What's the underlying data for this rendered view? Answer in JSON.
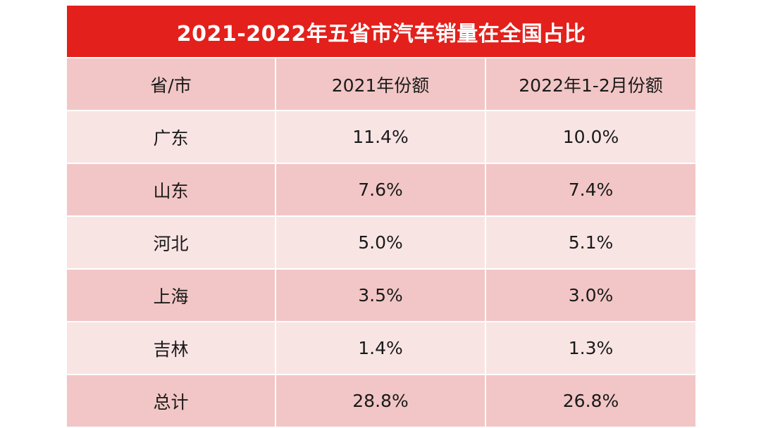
{
  "chart_data": {
    "type": "table",
    "title": "2021-2022年五省市汽车销量在全国占比",
    "columns": [
      "省/市",
      "2021年份额",
      "2022年1-2月份额"
    ],
    "rows": [
      [
        "广东",
        "11.4%",
        "10.0%"
      ],
      [
        "山东",
        "7.6%",
        "7.4%"
      ],
      [
        "河北",
        "5.0%",
        "5.1%"
      ],
      [
        "上海",
        "3.5%",
        "3.0%"
      ],
      [
        "吉林",
        "1.4%",
        "1.3%"
      ],
      [
        "总计",
        "28.8%",
        "26.8%"
      ]
    ],
    "series": [
      {
        "name": "2021年份额",
        "values": [
          11.4,
          7.6,
          5.0,
          3.5,
          1.4,
          28.8
        ]
      },
      {
        "name": "2022年1-2月份额",
        "values": [
          10.0,
          7.4,
          5.1,
          3.0,
          1.3,
          26.8
        ]
      }
    ],
    "categories": [
      "广东",
      "山东",
      "河北",
      "上海",
      "吉林",
      "总计"
    ]
  },
  "colors": {
    "title_bg": "#e3201b",
    "title_text": "#ffffff",
    "row_dark": "#f2c6c6",
    "row_light": "#f9e4e4",
    "text": "#1a1a1a"
  }
}
